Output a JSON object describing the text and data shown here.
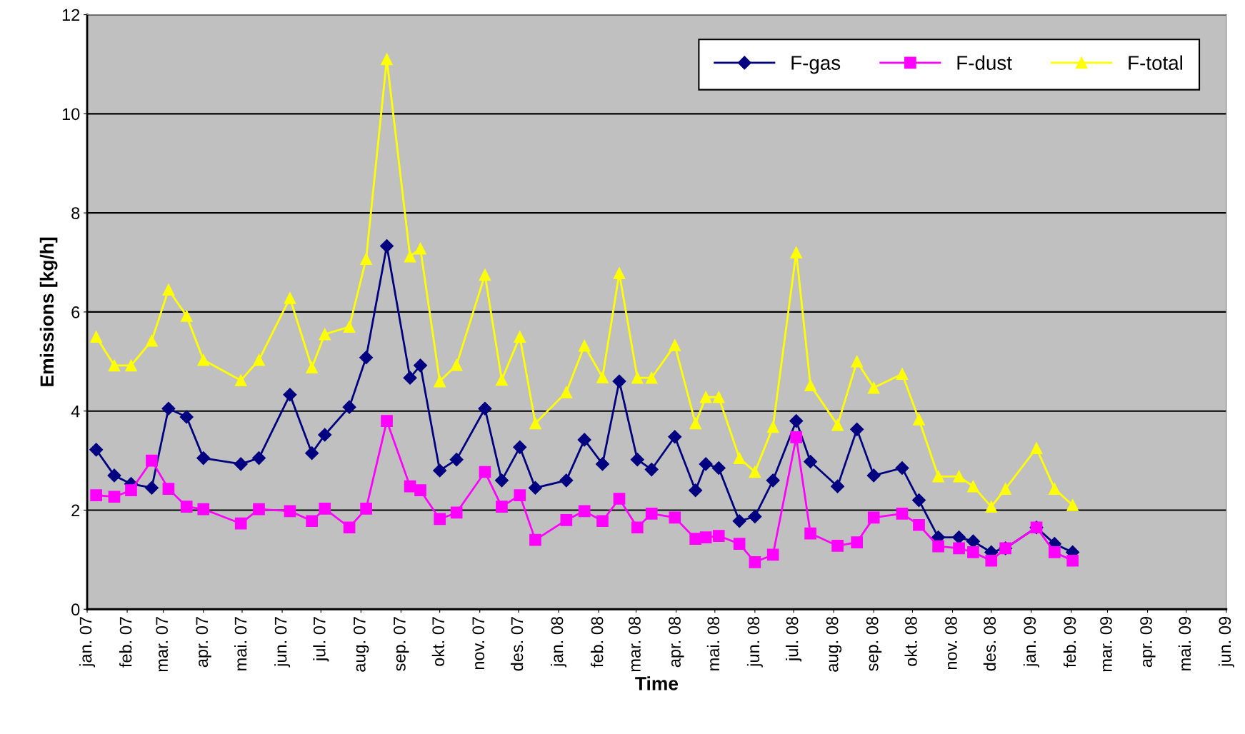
{
  "chart_data": {
    "type": "line",
    "xlabel": "Time",
    "ylabel": "Emissions [kg/h]",
    "x": [
      "2007-01-08",
      "2007-01-22",
      "2007-02-04",
      "2007-02-20",
      "2007-03-05",
      "2007-03-19",
      "2007-04-01",
      "2007-04-30",
      "2007-05-14",
      "2007-06-07",
      "2007-06-24",
      "2007-07-04",
      "2007-07-23",
      "2007-08-05",
      "2007-08-21",
      "2007-09-08",
      "2007-09-16",
      "2007-10-01",
      "2007-10-14",
      "2007-11-05",
      "2007-11-18",
      "2007-12-02",
      "2007-12-14",
      "2008-01-07",
      "2008-01-21",
      "2008-02-04",
      "2008-02-17",
      "2008-03-02",
      "2008-03-13",
      "2008-03-31",
      "2008-04-16",
      "2008-04-24",
      "2008-05-04",
      "2008-05-20",
      "2008-06-01",
      "2008-06-15",
      "2008-07-03",
      "2008-07-14",
      "2008-08-04",
      "2008-08-19",
      "2008-09-01",
      "2008-09-23",
      "2008-10-06",
      "2008-10-21",
      "2008-11-06",
      "2008-11-17",
      "2008-12-01",
      "2008-12-12",
      "2009-01-05",
      "2009-01-19",
      "2009-02-02"
    ],
    "series": [
      {
        "name": "F-gas",
        "color": "#000080",
        "marker": "diamond",
        "values": [
          3.22,
          2.7,
          2.53,
          2.45,
          4.05,
          3.88,
          3.05,
          2.93,
          3.05,
          4.33,
          3.15,
          3.52,
          4.08,
          5.08,
          7.33,
          4.67,
          4.92,
          2.8,
          3.02,
          4.05,
          2.6,
          3.27,
          2.45,
          2.6,
          3.42,
          2.93,
          4.6,
          3.02,
          2.82,
          3.48,
          2.4,
          2.93,
          2.85,
          1.78,
          1.87,
          2.6,
          3.8,
          2.98,
          2.48,
          3.63,
          2.7,
          2.85,
          2.2,
          1.45,
          1.45,
          1.37,
          1.15,
          1.23,
          1.65,
          1.32,
          1.15
        ]
      },
      {
        "name": "F-dust",
        "color": "#ff00ff",
        "marker": "square",
        "values": [
          2.3,
          2.27,
          2.4,
          3.0,
          2.43,
          2.07,
          2.02,
          1.73,
          2.02,
          1.98,
          1.78,
          2.03,
          1.65,
          2.03,
          3.8,
          2.48,
          2.4,
          1.82,
          1.95,
          2.77,
          2.07,
          2.3,
          1.4,
          1.8,
          1.98,
          1.78,
          2.23,
          1.65,
          1.93,
          1.85,
          1.42,
          1.45,
          1.48,
          1.32,
          0.95,
          1.1,
          3.47,
          1.53,
          1.28,
          1.35,
          1.85,
          1.93,
          1.7,
          1.27,
          1.23,
          1.15,
          0.98,
          1.23,
          1.65,
          1.15,
          0.98
        ]
      },
      {
        "name": "F-total",
        "color": "#ffff00",
        "marker": "triangle",
        "values": [
          5.5,
          4.92,
          4.92,
          5.42,
          6.45,
          5.92,
          5.03,
          4.62,
          5.03,
          6.28,
          4.88,
          5.55,
          5.7,
          7.07,
          11.1,
          7.12,
          7.28,
          4.6,
          4.93,
          6.75,
          4.63,
          5.5,
          3.75,
          4.38,
          5.32,
          4.68,
          6.78,
          4.67,
          4.67,
          5.33,
          3.75,
          4.28,
          4.28,
          3.05,
          2.77,
          3.68,
          7.2,
          4.52,
          3.72,
          5.0,
          4.47,
          4.75,
          3.83,
          2.68,
          2.68,
          2.48,
          2.07,
          2.43,
          3.25,
          2.43,
          2.1
        ]
      }
    ],
    "xlim": [
      "2007-01-01",
      "2009-06-01"
    ],
    "xticks": [
      {
        "value": "2007-01-01",
        "label": "jan. 07"
      },
      {
        "value": "2007-02-01",
        "label": "feb. 07"
      },
      {
        "value": "2007-03-01",
        "label": "mar. 07"
      },
      {
        "value": "2007-04-01",
        "label": "apr. 07"
      },
      {
        "value": "2007-05-01",
        "label": "mai. 07"
      },
      {
        "value": "2007-06-01",
        "label": "jun. 07"
      },
      {
        "value": "2007-07-01",
        "label": "jul. 07"
      },
      {
        "value": "2007-08-01",
        "label": "aug. 07"
      },
      {
        "value": "2007-09-01",
        "label": "sep. 07"
      },
      {
        "value": "2007-10-01",
        "label": "okt. 07"
      },
      {
        "value": "2007-11-01",
        "label": "nov. 07"
      },
      {
        "value": "2007-12-01",
        "label": "des. 07"
      },
      {
        "value": "2008-01-01",
        "label": "jan. 08"
      },
      {
        "value": "2008-02-01",
        "label": "feb. 08"
      },
      {
        "value": "2008-03-01",
        "label": "mar. 08"
      },
      {
        "value": "2008-04-01",
        "label": "apr. 08"
      },
      {
        "value": "2008-05-01",
        "label": "mai. 08"
      },
      {
        "value": "2008-06-01",
        "label": "jun. 08"
      },
      {
        "value": "2008-07-01",
        "label": "jul. 08"
      },
      {
        "value": "2008-08-01",
        "label": "aug. 08"
      },
      {
        "value": "2008-09-01",
        "label": "sep. 08"
      },
      {
        "value": "2008-10-01",
        "label": "okt. 08"
      },
      {
        "value": "2008-11-01",
        "label": "nov. 08"
      },
      {
        "value": "2008-12-01",
        "label": "des. 08"
      },
      {
        "value": "2009-01-01",
        "label": "jan. 09"
      },
      {
        "value": "2009-02-01",
        "label": "feb. 09"
      },
      {
        "value": "2009-03-01",
        "label": "mar. 09"
      },
      {
        "value": "2009-04-01",
        "label": "apr. 09"
      },
      {
        "value": "2009-05-01",
        "label": "mai. 09"
      },
      {
        "value": "2009-06-01",
        "label": "jun. 09"
      }
    ],
    "ylim": [
      0,
      12
    ],
    "yticks": [
      0,
      2,
      4,
      6,
      8,
      10,
      12
    ],
    "grid": "y",
    "legend": "top right",
    "line_style": "solid"
  }
}
